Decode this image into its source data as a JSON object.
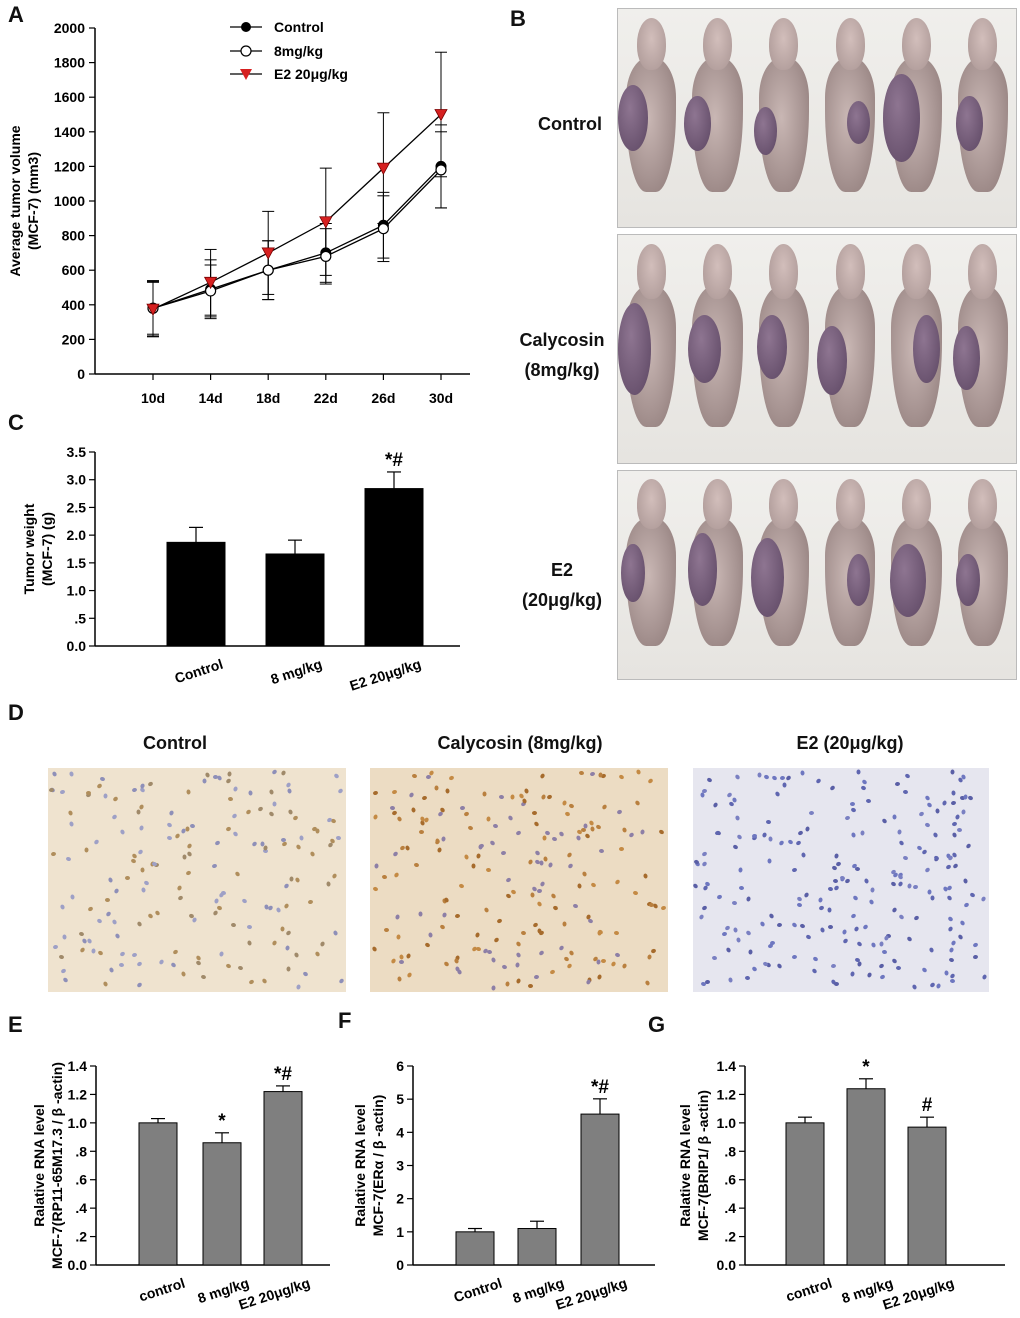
{
  "panels": {
    "A": "A",
    "B": "B",
    "C": "C",
    "D": "D",
    "E": "E",
    "F": "F",
    "G": "G"
  },
  "colors": {
    "bar_black": "#000000",
    "bar_gray": "#7f7f7f",
    "e2_marker": "#d62020"
  },
  "panel_b": {
    "row_labels": [
      "Control",
      "Calycosin",
      "(8mg/kg)",
      "E2",
      "(20μg/kg)"
    ]
  },
  "panel_d": {
    "labels": [
      "Control",
      "Calycosin (8mg/kg)",
      "E2 (20μg/kg)"
    ]
  },
  "chart_data": [
    {
      "panel": "A",
      "type": "line",
      "ylabel_lines": [
        "Average tumor volume",
        "(MCF-7) (mm3)"
      ],
      "ylim": [
        0,
        2000
      ],
      "yticks": [
        "0",
        "200",
        "400",
        "600",
        "800",
        "1000",
        "1200",
        "1400",
        "1600",
        "1800",
        "2000"
      ],
      "categories": [
        "10d",
        "14d",
        "18d",
        "22d",
        "26d",
        "30d"
      ],
      "series": [
        {
          "name": "Control",
          "marker": "filled-circle",
          "values": [
            380,
            490,
            600,
            700,
            860,
            1200
          ],
          "errors": [
            160,
            170,
            170,
            170,
            190,
            240
          ]
        },
        {
          "name": "8mg/kg",
          "marker": "open-circle",
          "values": [
            380,
            480,
            600,
            680,
            840,
            1180
          ],
          "errors": [
            150,
            150,
            170,
            160,
            190,
            220
          ]
        },
        {
          "name": "E2 20μg/kg",
          "marker": "red-down-triangle",
          "values": [
            375,
            530,
            700,
            880,
            1190,
            1500
          ],
          "errors": [
            160,
            190,
            240,
            310,
            320,
            360
          ]
        }
      ],
      "legend_position": "top-left"
    },
    {
      "panel": "C",
      "type": "bar",
      "ylabel_lines": [
        "Tumor weight",
        "(MCF-7) (g)"
      ],
      "ylim": [
        0,
        3.5
      ],
      "yticks": [
        "0.0",
        ".5",
        "1.0",
        "1.5",
        "2.0",
        "2.5",
        "3.0",
        "3.5"
      ],
      "categories": [
        "Control",
        "8 mg/kg",
        "E2 20μg/kg"
      ],
      "values": [
        1.87,
        1.66,
        2.84
      ],
      "errors": [
        0.27,
        0.25,
        0.3
      ],
      "annotations": [
        "",
        "",
        "*#"
      ]
    },
    {
      "panel": "E",
      "type": "bar",
      "ylabel_lines": [
        "Ralative RNA level",
        "MCF-7(RP11-65M17.3 / β -actin)"
      ],
      "ylim": [
        0,
        1.4
      ],
      "yticks": [
        "0.0",
        ".2",
        ".4",
        ".6",
        ".8",
        "1.0",
        "1.2",
        "1.4"
      ],
      "categories": [
        "control",
        "8 mg/kg",
        "E2 20μg/kg"
      ],
      "values": [
        1.0,
        0.86,
        1.22
      ],
      "errors": [
        0.03,
        0.07,
        0.04
      ],
      "annotations": [
        "",
        "*",
        "*#"
      ]
    },
    {
      "panel": "F",
      "type": "bar",
      "ylabel_lines": [
        "Ralative RNA level",
        "MCF-7(ERα / β -actin)"
      ],
      "ylim": [
        0,
        6
      ],
      "yticks": [
        "0",
        "1",
        "2",
        "3",
        "4",
        "5",
        "6"
      ],
      "categories": [
        "Control",
        "8 mg/kg",
        "E2 20μg/kg"
      ],
      "values": [
        1.0,
        1.1,
        4.55
      ],
      "errors": [
        0.1,
        0.22,
        0.46
      ],
      "annotations": [
        "",
        "",
        "*#"
      ]
    },
    {
      "panel": "G",
      "type": "bar",
      "ylabel_lines": [
        "Ralative RNA level",
        "MCF-7(BRIP1/ β -actin)"
      ],
      "ylim": [
        0,
        1.4
      ],
      "yticks": [
        "0.0",
        ".2",
        ".4",
        ".6",
        ".8",
        "1.0",
        "1.2",
        "1.4"
      ],
      "categories": [
        "control",
        "8 mg/kg",
        "E2 20μg/kg"
      ],
      "values": [
        1.0,
        1.24,
        0.97
      ],
      "errors": [
        0.04,
        0.07,
        0.07
      ],
      "annotations": [
        "",
        "*",
        "#"
      ]
    }
  ]
}
